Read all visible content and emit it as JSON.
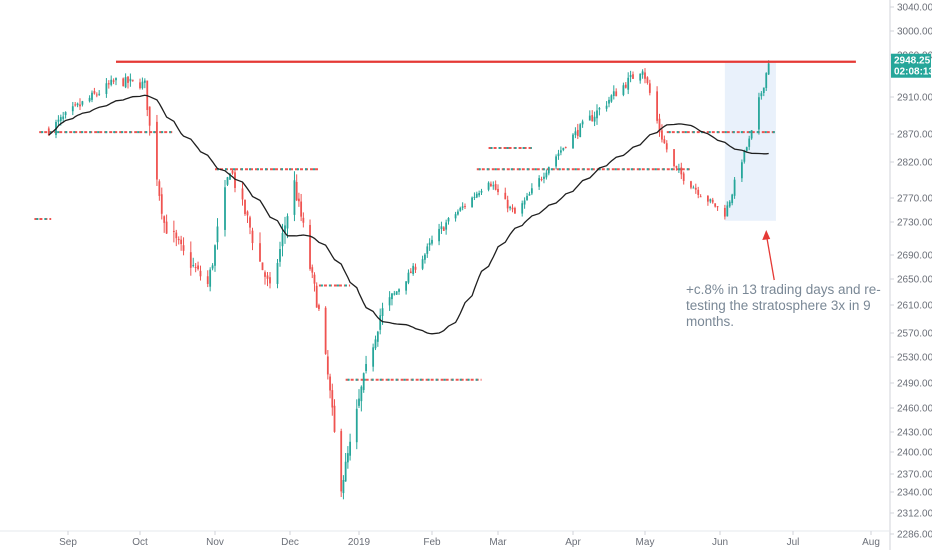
{
  "chart_data": {
    "type": "candlestick",
    "title": "",
    "xlabel": "",
    "ylabel": "",
    "x_ticks": [
      "Sep",
      "Oct",
      "Nov",
      "Dec",
      "2019",
      "Feb",
      "Mar",
      "Apr",
      "May",
      "Jun",
      "Jul",
      "Aug"
    ],
    "y_ticks": [
      "3040.00",
      "3000.00",
      "2960.00",
      "2948.25",
      "02:08:13",
      "2910.00",
      "2870.00",
      "2820.00",
      "2770.00",
      "2730.00",
      "2690.00",
      "2650.00",
      "2610.00",
      "2570.00",
      "2530.00",
      "2490.00",
      "2460.00",
      "2430.00",
      "2400.00",
      "2370.00",
      "2340.00",
      "2312.00",
      "2286.00"
    ],
    "ylim": [
      2270,
      3050
    ],
    "current_price": "2948.25",
    "countdown": "02:08:13",
    "closes_approx": [
      [
        "2018-08-24",
        2874
      ],
      [
        "2018-09-04",
        2897
      ],
      [
        "2018-09-21",
        2929
      ],
      [
        "2018-10-03",
        2925
      ],
      [
        "2018-10-11",
        2729
      ],
      [
        "2018-10-29",
        2641
      ],
      [
        "2018-11-07",
        2813
      ],
      [
        "2018-11-23",
        2633
      ],
      [
        "2018-12-03",
        2790
      ],
      [
        "2018-12-14",
        2600
      ],
      [
        "2018-12-24",
        2351
      ],
      [
        "2019-01-10",
        2596
      ],
      [
        "2019-02-01",
        2706
      ],
      [
        "2019-02-25",
        2796
      ],
      [
        "2019-03-08",
        2743
      ],
      [
        "2019-04-01",
        2867
      ],
      [
        "2019-04-30",
        2945
      ],
      [
        "2019-05-13",
        2812
      ],
      [
        "2019-06-03",
        2744
      ],
      [
        "2019-06-21",
        2950
      ]
    ],
    "series": [
      {
        "name": "",
        "type": "moving-average",
        "color": "#1f1f1f"
      },
      {
        "name": "",
        "type": "resistance",
        "level": 2952,
        "color": "#e53935"
      }
    ],
    "support_levels": [
      2872,
      2845,
      2810,
      2690,
      2640,
      2495
    ],
    "annotation": [
      "+c.8% in 13 trading days and re-",
      "testing the stratosphere 3x in 9",
      "months."
    ],
    "colors": {
      "up": "#26a69a",
      "down": "#ef5350",
      "resistance": "#e53935",
      "ma": "#1f1f1f",
      "box": "#dbe8f8",
      "price_badge": "#26a69a",
      "axis_text": "#6b6f78"
    },
    "grid": false
  }
}
